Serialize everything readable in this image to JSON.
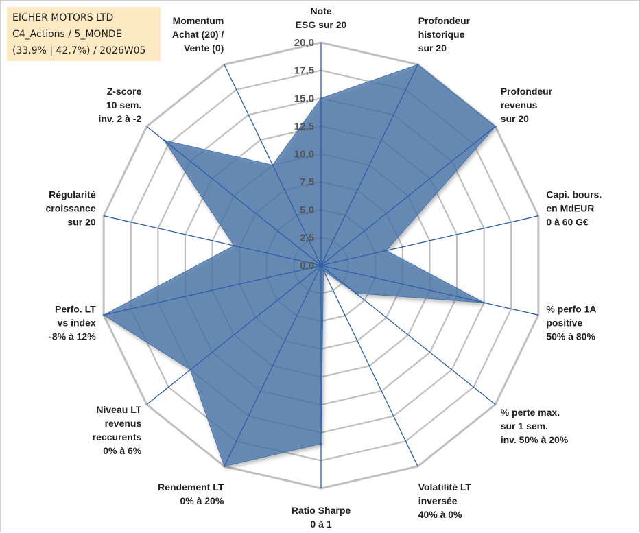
{
  "info_box": {
    "line1": "EICHER MOTORS LTD",
    "line2": "C4_Actions / 5_MONDE",
    "line3": "(33,9% | 42,7%) / 2026W05"
  },
  "chart_data": {
    "type": "radar",
    "title": "",
    "r_min": 0,
    "r_max": 20,
    "tick_values": [
      0,
      2.5,
      5,
      7.5,
      10,
      12.5,
      15,
      17.5,
      20
    ],
    "tick_labels": [
      "0,0",
      "2,5",
      "5,0",
      "7,5",
      "10,0",
      "12,5",
      "15,0",
      "17,5",
      "20,0"
    ],
    "grid": true,
    "axes": [
      {
        "lines": [
          "Note",
          "ESG sur 20"
        ],
        "value": 15
      },
      {
        "lines": [
          "Profondeur",
          "historique",
          "sur 20"
        ],
        "value": 20
      },
      {
        "lines": [
          "Profondeur",
          "revenus",
          "sur 20"
        ],
        "value": 20
      },
      {
        "lines": [
          "Capi. bours.",
          "en MdEUR",
          "0 à 60 G€"
        ],
        "value": 6
      },
      {
        "lines": [
          "% perfo 1A",
          "positive",
          "50% à 80%"
        ],
        "value": 15
      },
      {
        "lines": [
          "% perte max.",
          "sur 1 sem.",
          "inv. 50% à 20%"
        ],
        "value": 4
      },
      {
        "lines": [
          "Volatilité LT",
          "inversée",
          "40% à 0%"
        ],
        "value": 0.5
      },
      {
        "lines": [
          "Ratio Sharpe",
          "0 à 1"
        ],
        "value": 16
      },
      {
        "lines": [
          "Rendement LT",
          "0% à 20%"
        ],
        "value": 20
      },
      {
        "lines": [
          "Niveau LT",
          "revenus",
          "reccurents",
          "0% à 6%"
        ],
        "value": 15
      },
      {
        "lines": [
          "Perfo. LT",
          "vs index",
          "-8% à 12%"
        ],
        "value": 20
      },
      {
        "lines": [
          "Régularité",
          "croissance",
          "sur 20"
        ],
        "value": 8
      },
      {
        "lines": [
          "Z-score",
          "10 sem.",
          "inv. 2 à -2"
        ],
        "value": 18
      },
      {
        "lines": [
          "Momentum",
          "Achat (20) /",
          "Vente (0)"
        ],
        "value": 10
      }
    ],
    "series_color": "#4a76ab",
    "grid_color": "#bfbfbf",
    "spoke_color": "#2e5ea8"
  }
}
